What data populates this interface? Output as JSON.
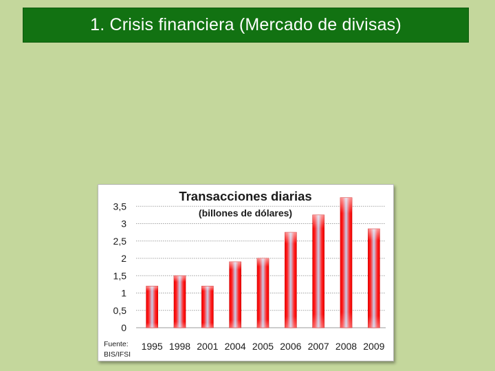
{
  "slide": {
    "title": "1. Crisis financiera (Mercado de divisas)"
  },
  "colors": {
    "background": "#c4d79c",
    "title_bar": "#127212",
    "bar_red": "#ff1a1a",
    "bar_highlight": "#c9cde8"
  },
  "chart_data": {
    "type": "bar",
    "title": "Transacciones diarias",
    "subtitle": "(billones de dólares)",
    "categories": [
      "1995",
      "1998",
      "2001",
      "2004",
      "2005",
      "2006",
      "2007",
      "2008",
      "2009"
    ],
    "values": [
      1.2,
      1.5,
      1.2,
      1.9,
      2.0,
      2.75,
      3.25,
      3.75,
      2.85
    ],
    "ylim": [
      0,
      3.75
    ],
    "yticks": [
      "0",
      "0,5",
      "1",
      "1,5",
      "2",
      "2,5",
      "3",
      "3,5"
    ],
    "source": [
      "Fuente:",
      "BIS/IFSI"
    ],
    "grid": true,
    "legend": "none"
  }
}
